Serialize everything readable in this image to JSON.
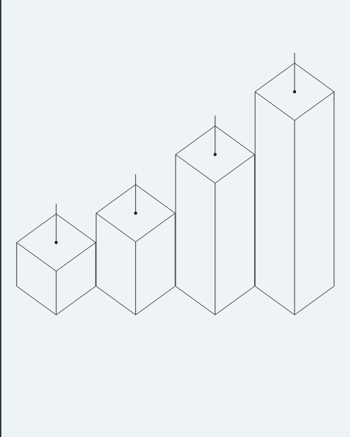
{
  "chart_data": {
    "type": "bar",
    "categories": [
      null,
      null,
      null,
      null
    ],
    "values": [
      64,
      107,
      193,
      285
    ],
    "ylim": [
      0,
      300
    ],
    "color": "#1a1a1a",
    "grid": false,
    "tick_labels": false
  }
}
